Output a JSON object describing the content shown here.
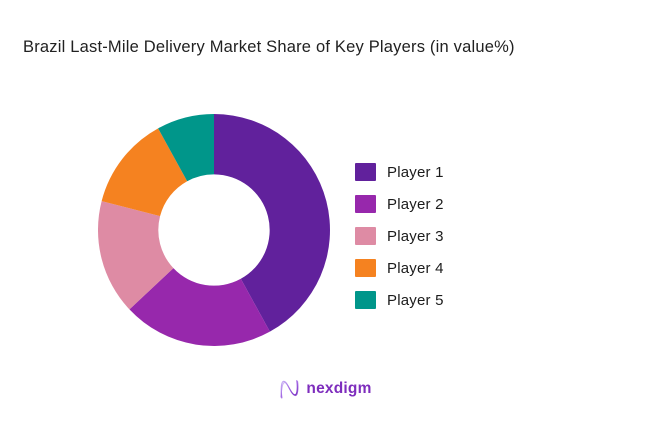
{
  "page": {
    "background_color": "#ffffff"
  },
  "title": {
    "text": "Brazil Last-Mile Delivery Market Share of Key Players (in value%)"
  },
  "chart_data": {
    "type": "pie",
    "subtype": "donut",
    "title": "Brazil Last-Mile Delivery Market Share of Key Players (in value%)",
    "categories": [
      "Player 1",
      "Player 2",
      "Player 3",
      "Player 4",
      "Player 5"
    ],
    "values": [
      42,
      21,
      16,
      13,
      8
    ],
    "unit": "value%",
    "colors": [
      "#61219c",
      "#9728ac",
      "#de8ba4",
      "#f58220",
      "#00968a"
    ],
    "start_angle_deg": 0,
    "direction": "clockwise",
    "inner_radius_ratio": 0.48,
    "legend_position": "right",
    "data_labels_shown": false
  },
  "footer": {
    "brand_text": "nexdigm",
    "brand_color": "#7e2dbd",
    "brand_icon": "nexdigm-n-wave-icon"
  }
}
